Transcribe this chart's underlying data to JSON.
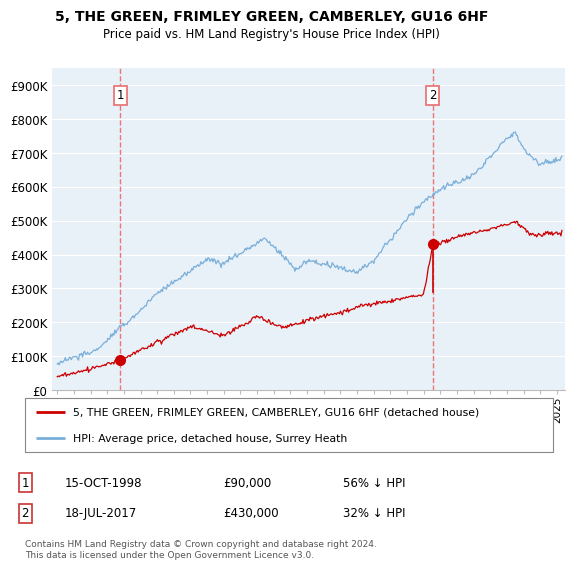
{
  "title": "5, THE GREEN, FRIMLEY GREEN, CAMBERLEY, GU16 6HF",
  "subtitle": "Price paid vs. HM Land Registry's House Price Index (HPI)",
  "ylabel_ticks": [
    "£0",
    "£100K",
    "£200K",
    "£300K",
    "£400K",
    "£500K",
    "£600K",
    "£700K",
    "£800K",
    "£900K"
  ],
  "ytick_values": [
    0,
    100000,
    200000,
    300000,
    400000,
    500000,
    600000,
    700000,
    800000,
    900000
  ],
  "ylim": [
    0,
    950000
  ],
  "xlim_start": 1994.7,
  "xlim_end": 2025.5,
  "transaction1": {
    "date_num": 1998.79,
    "price": 90000,
    "label": "1"
  },
  "transaction2": {
    "date_num": 2017.54,
    "price": 430000,
    "label": "2"
  },
  "legend_entries": [
    "5, THE GREEN, FRIMLEY GREEN, CAMBERLEY, GU16 6HF (detached house)",
    "HPI: Average price, detached house, Surrey Heath"
  ],
  "annotation1_date": "15-OCT-1998",
  "annotation1_price": "£90,000",
  "annotation1_hpi": "56% ↓ HPI",
  "annotation2_date": "18-JUL-2017",
  "annotation2_price": "£430,000",
  "annotation2_hpi": "32% ↓ HPI",
  "footer": "Contains HM Land Registry data © Crown copyright and database right 2024.\nThis data is licensed under the Open Government Licence v3.0.",
  "line_color_red": "#cc0000",
  "line_color_blue": "#7aafda",
  "vline_color": "#e87878",
  "background_color": "#ffffff",
  "chart_bg_color": "#e8f0f8",
  "grid_color": "#ffffff"
}
